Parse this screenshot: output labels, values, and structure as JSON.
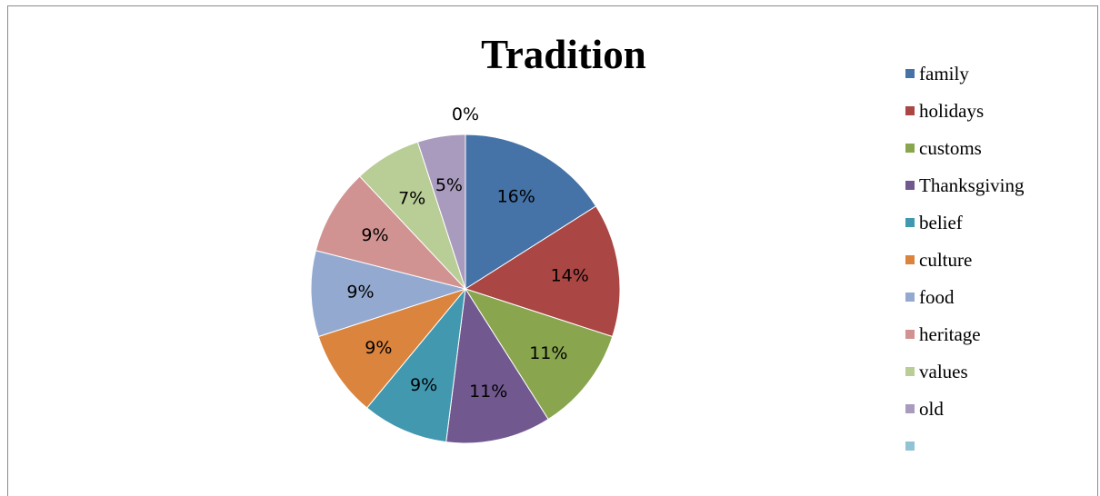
{
  "chart_data": {
    "type": "pie",
    "title": "Tradition",
    "legend_position": "right",
    "slices": [
      {
        "name": "family",
        "value": 16,
        "label": "16%",
        "color": "#4572A7"
      },
      {
        "name": "holidays",
        "value": 14,
        "label": "14%",
        "color": "#AA4643"
      },
      {
        "name": "customs",
        "value": 11,
        "label": "11%",
        "color": "#89A54E"
      },
      {
        "name": "Thanksgiving",
        "value": 11,
        "label": "11%",
        "color": "#71588F"
      },
      {
        "name": "belief",
        "value": 9,
        "label": "9%",
        "color": "#4198AF"
      },
      {
        "name": "culture",
        "value": 9,
        "label": "9%",
        "color": "#DB843D"
      },
      {
        "name": "food",
        "value": 9,
        "label": "9%",
        "color": "#93A9CF"
      },
      {
        "name": "heritage",
        "value": 9,
        "label": "9%",
        "color": "#D19392"
      },
      {
        "name": "values",
        "value": 7,
        "label": "7%",
        "color": "#B9CD96"
      },
      {
        "name": "old",
        "value": 5,
        "label": "5%",
        "color": "#A99BBD"
      },
      {
        "name": "",
        "value": 0,
        "label": "0%",
        "color": "#92C3D5"
      }
    ]
  }
}
